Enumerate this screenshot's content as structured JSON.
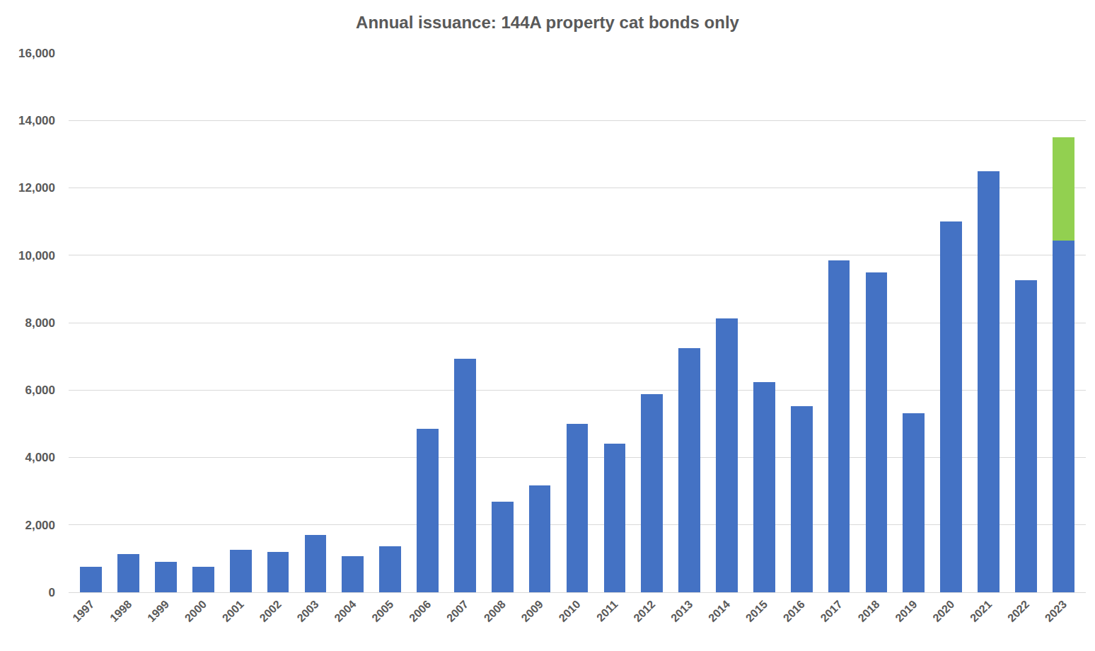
{
  "chart_data": {
    "type": "bar",
    "title": "Annual issuance: 144A property cat bonds only",
    "categories": [
      "1997",
      "1998",
      "1999",
      "2000",
      "2001",
      "2002",
      "2003",
      "2004",
      "2005",
      "2006",
      "2007",
      "2008",
      "2009",
      "2010",
      "2011",
      "2012",
      "2013",
      "2014",
      "2015",
      "2016",
      "2017",
      "2018",
      "2019",
      "2020",
      "2021",
      "2022",
      "2023"
    ],
    "series": [
      {
        "color": "#4472c4",
        "values": [
          760,
          1130,
          900,
          750,
          1260,
          1200,
          1700,
          1070,
          1365,
          4850,
          6930,
          2680,
          3170,
          4990,
          4400,
          5870,
          7250,
          8130,
          6240,
          5530,
          9850,
          9500,
          5320,
          11000,
          12490,
          9250,
          10440
        ]
      },
      {
        "color": "#92d050",
        "values": [
          null,
          null,
          null,
          null,
          null,
          null,
          null,
          null,
          null,
          null,
          null,
          null,
          null,
          null,
          null,
          null,
          null,
          null,
          null,
          null,
          null,
          null,
          null,
          null,
          null,
          null,
          3060
        ]
      }
    ],
    "stacked": true,
    "ylim": [
      0,
      16000
    ],
    "yticks": [
      0,
      {
        "value": 2000,
        "label": "2,000"
      },
      {
        "value": 4000,
        "label": "4,000"
      },
      {
        "value": 6000,
        "label": "6,000"
      },
      {
        "value": 8000,
        "label": "8,000"
      },
      {
        "value": 10000,
        "label": "10,000"
      },
      {
        "value": 12000,
        "label": "12,000"
      },
      {
        "value": 14000,
        "label": "14,000"
      },
      {
        "value": 16000,
        "label": "16,000"
      }
    ],
    "grid": true
  }
}
